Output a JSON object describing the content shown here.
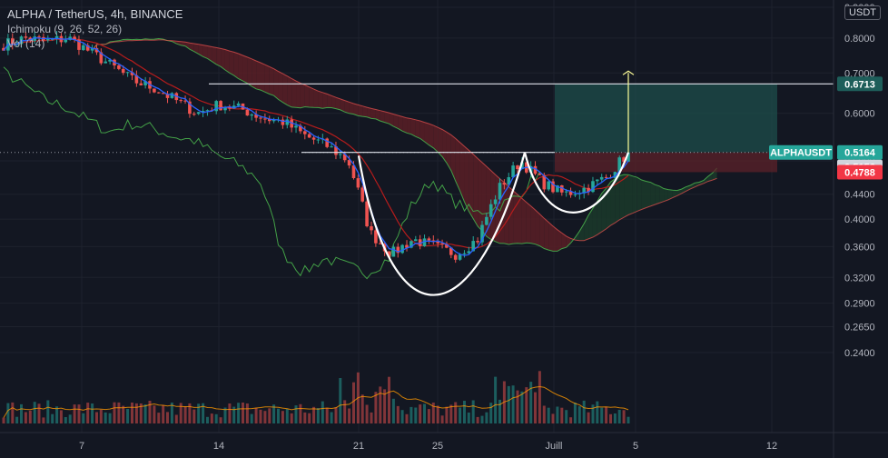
{
  "legend": {
    "title": "ALPHA / TetherUS, 4h, BINANCE",
    "ichimoku": "Ichimoku (9, 26, 52, 26)",
    "volume": "Vol (14)"
  },
  "currency": "USDT",
  "colors": {
    "background": "#131722",
    "up": "#26a69a",
    "down": "#ef5350",
    "conversion": "#2962ff",
    "base": "#b71c1c",
    "lagging": "#43a047",
    "cloud_bear": "#5b1e26",
    "cloud_bull": "#1b3a2a",
    "pattern": "#ffffff",
    "target_line": "#ffff99",
    "target_zone": "#1e4d4b",
    "stop_zone": "#5c2129",
    "volume_ma": "#ff9800"
  },
  "chart_data": {
    "type": "candlestick",
    "yaxis_scale": "log",
    "yaxis_ticks": [
      "0.9000",
      "0.8000",
      "0.7000",
      "0.6000",
      "0.5000",
      "0.4400",
      "0.4000",
      "0.3600",
      "0.3200",
      "0.2900",
      "0.2650",
      "0.2400"
    ],
    "xaxis_ticks": [
      "7",
      "14",
      "21",
      "25",
      "Juill",
      "5",
      "12"
    ],
    "price_labels": [
      {
        "text": "ALPHAUSDT",
        "kind": "symbol"
      },
      {
        "text": "0.6713",
        "value": 0.6713,
        "kind": "target"
      },
      {
        "text": "0.5164",
        "value": 0.5164,
        "kind": "last"
      },
      {
        "text": "0.5156",
        "value": 0.5156,
        "kind": "entry"
      },
      {
        "text": "0.4788",
        "value": 0.4788,
        "kind": "stop"
      }
    ],
    "resistance_level": 0.6713,
    "neckline": 0.5164,
    "pattern": "cup-and-handle",
    "close_path": [
      [
        "06-05",
        0.78
      ],
      [
        "06-06",
        0.8
      ],
      [
        "06-07",
        0.79
      ],
      [
        "06-08",
        0.8
      ],
      [
        "06-09",
        0.76
      ],
      [
        "06-10",
        0.72
      ],
      [
        "06-11",
        0.68
      ],
      [
        "06-12",
        0.66
      ],
      [
        "06-13",
        0.63
      ],
      [
        "06-14",
        0.6
      ],
      [
        "06-15",
        0.62
      ],
      [
        "06-16",
        0.61
      ],
      [
        "06-17",
        0.59
      ],
      [
        "06-18",
        0.58
      ],
      [
        "06-19",
        0.55
      ],
      [
        "06-20",
        0.53
      ],
      [
        "06-21",
        0.5
      ],
      [
        "06-22",
        0.38
      ],
      [
        "06-23",
        0.35
      ],
      [
        "06-24",
        0.37
      ],
      [
        "06-25",
        0.36
      ],
      [
        "06-26",
        0.35
      ],
      [
        "06-27",
        0.37
      ],
      [
        "06-28",
        0.45
      ],
      [
        "06-29",
        0.5
      ],
      [
        "06-30",
        0.46
      ],
      [
        "07-01",
        0.44
      ],
      [
        "07-02",
        0.45
      ],
      [
        "07-03",
        0.47
      ],
      [
        "07-04",
        0.5164
      ]
    ]
  }
}
